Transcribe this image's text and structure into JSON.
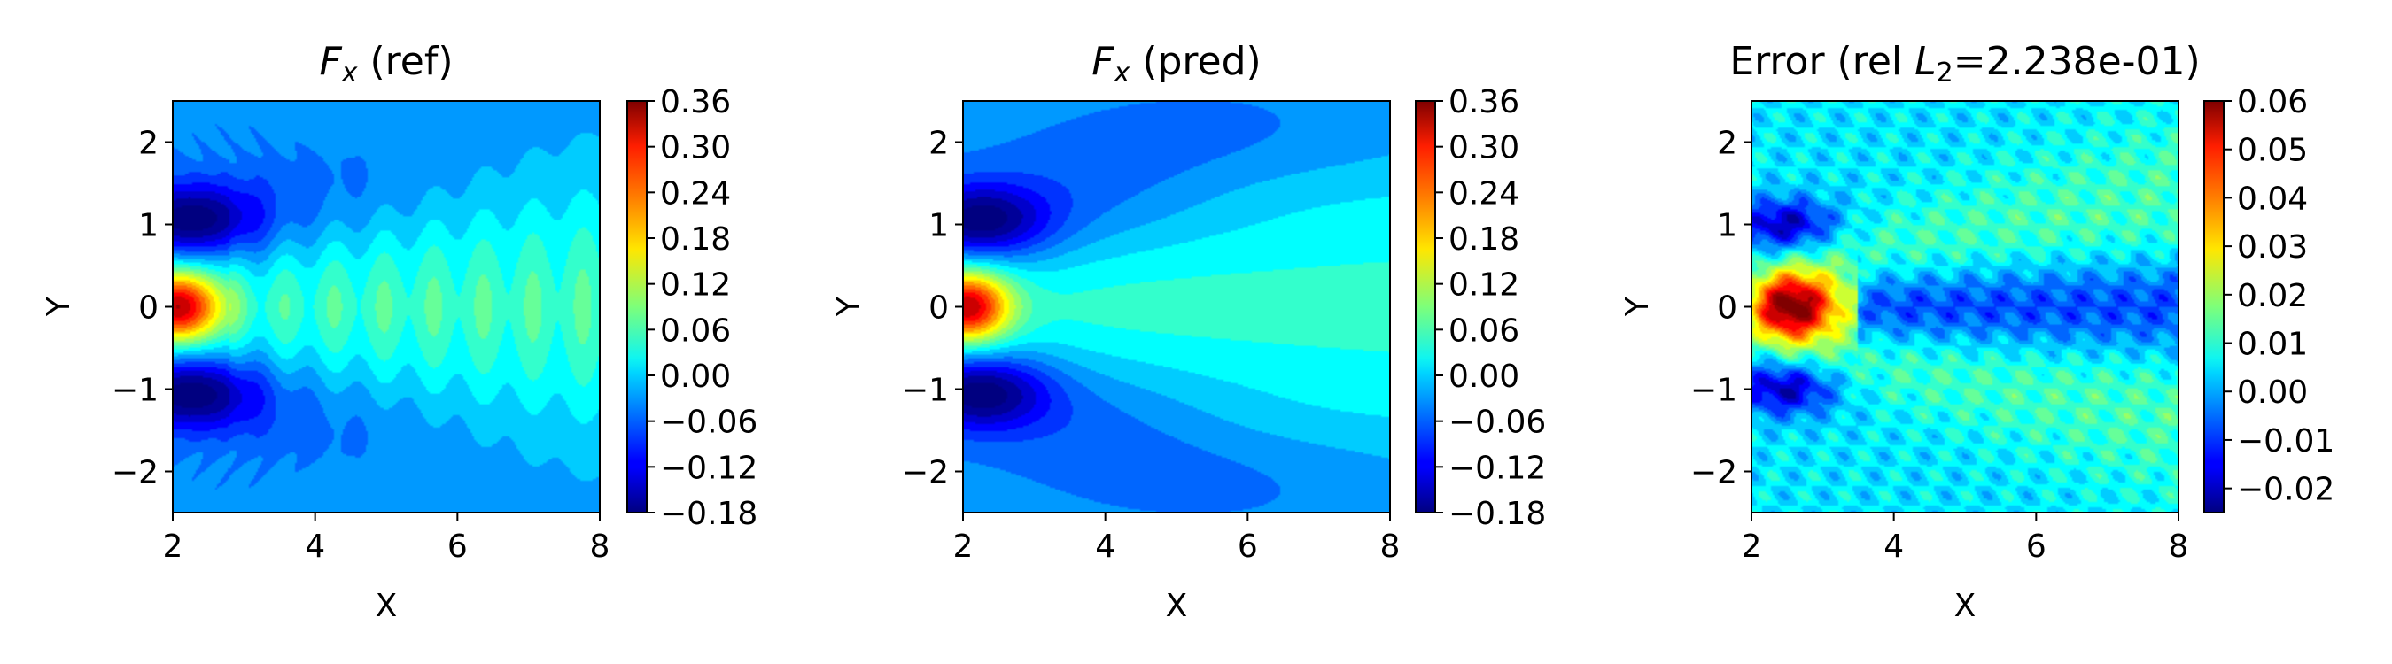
{
  "figure": {
    "panels": [
      {
        "title_var": "F",
        "title_sub": "x",
        "title_rest": " (ref)"
      },
      {
        "title_var": "F",
        "title_sub": "x",
        "title_rest": " (pred)"
      },
      {
        "title_pre": "Error (rel ",
        "title_var": "L",
        "title_sub": "2",
        "title_rest": "=2.238e-01)"
      }
    ]
  },
  "chart_data": [
    {
      "type": "heatmap",
      "title": "Fx (ref)",
      "xlabel": "X",
      "ylabel": "Y",
      "xlim": [
        2,
        8
      ],
      "ylim": [
        -2.5,
        2.5
      ],
      "xticks": [
        "2",
        "4",
        "6",
        "8"
      ],
      "yticks": [
        "2",
        "1",
        "0",
        "−1",
        "−2"
      ],
      "colormap": "jet",
      "colorbar": {
        "min": -0.18,
        "max": 0.36,
        "ticks": [
          "0.36",
          "0.30",
          "0.24",
          "0.18",
          "0.12",
          "0.06",
          "0.00",
          "−0.06",
          "−0.12",
          "−0.18"
        ]
      },
      "field": {
        "center_peak": 0.34,
        "lobe_min": -0.18,
        "background": -0.03,
        "lobe_y": 1.05,
        "wake": "striated"
      }
    },
    {
      "type": "heatmap",
      "title": "Fx (pred)",
      "xlabel": "X",
      "ylabel": "Y",
      "xlim": [
        2,
        8
      ],
      "ylim": [
        -2.5,
        2.5
      ],
      "xticks": [
        "2",
        "4",
        "6",
        "8"
      ],
      "yticks": [
        "2",
        "1",
        "0",
        "−1",
        "−2"
      ],
      "colormap": "jet",
      "colorbar": {
        "min": -0.18,
        "max": 0.36,
        "ticks": [
          "0.36",
          "0.30",
          "0.24",
          "0.18",
          "0.12",
          "0.06",
          "0.00",
          "−0.06",
          "−0.12",
          "−0.18"
        ]
      },
      "field": {
        "center_peak": 0.34,
        "lobe_min": -0.18,
        "background": -0.03,
        "lobe_y": 1.05,
        "wake": "smooth"
      }
    },
    {
      "type": "heatmap",
      "title": "Error (rel L2=2.238e-01)",
      "xlabel": "X",
      "ylabel": "Y",
      "xlim": [
        2,
        8
      ],
      "ylim": [
        -2.5,
        2.5
      ],
      "xticks": [
        "2",
        "4",
        "6",
        "8"
      ],
      "yticks": [
        "2",
        "1",
        "0",
        "−1",
        "−2"
      ],
      "colormap": "jet",
      "colorbar": {
        "min": -0.025,
        "max": 0.06,
        "ticks": [
          "0.06",
          "0.05",
          "0.04",
          "0.03",
          "0.02",
          "0.01",
          "0.00",
          "−0.01",
          "−0.02"
        ]
      },
      "field": {
        "center_peak": 0.058,
        "background": 0.005,
        "cone_value": 0.014,
        "lobe_value": -0.02
      }
    }
  ]
}
